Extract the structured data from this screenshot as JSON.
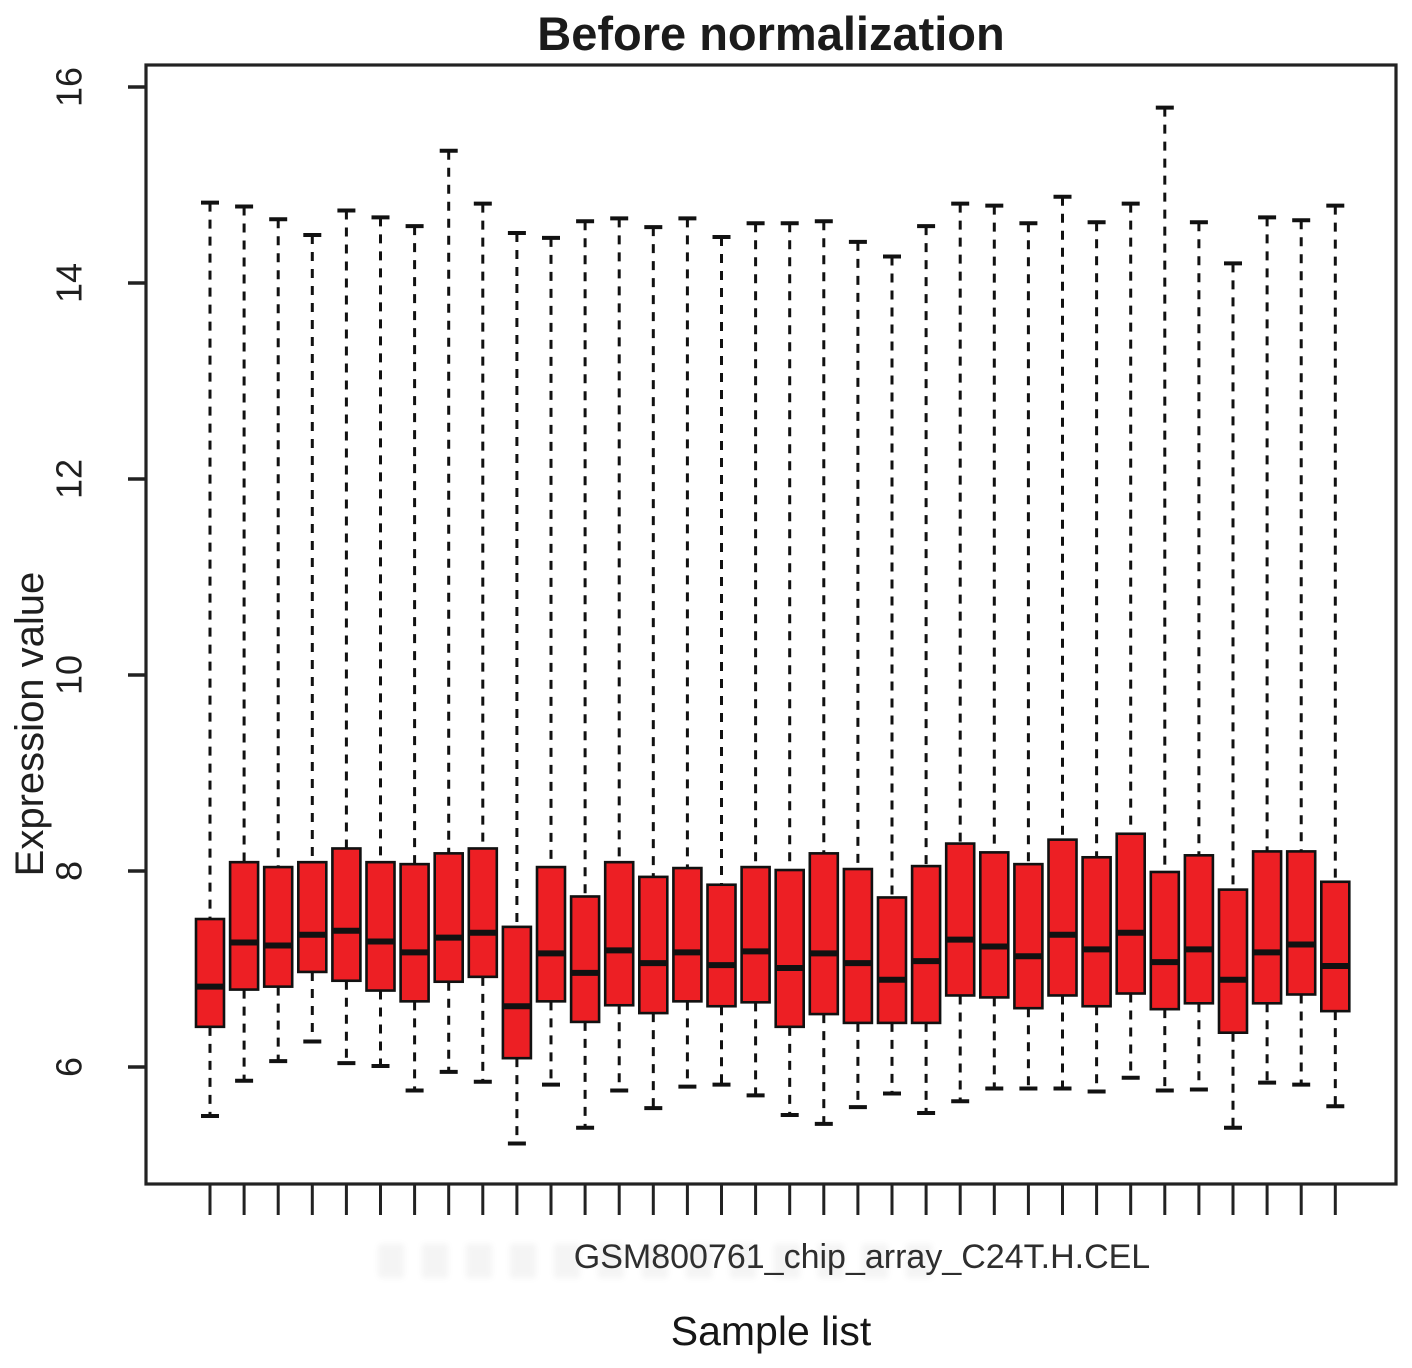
{
  "title": "Before normalization",
  "y_axis": {
    "label": "Expression value"
  },
  "x_axis": {
    "label": "Sample list",
    "tick_label": "GSM800761_chip_array_C24T.H.CEL"
  },
  "chart_data": {
    "type": "boxplot",
    "title": "Before normalization",
    "xlabel": "Sample list",
    "ylabel": "Expression value",
    "x_tick_label_visible": "GSM800761_chip_array_C24T.H.CEL",
    "ylim": [
      4.8,
      16.2
    ],
    "y_ticks": [
      6,
      8,
      10,
      12,
      14,
      16
    ],
    "grid": false,
    "legend": "none",
    "n_boxes": 34,
    "box_fill_color": "#ED1F24",
    "stroke_color": "#111111",
    "whisker_style": "dashed",
    "boxes": [
      {
        "low": 5.5,
        "q1": 6.41,
        "median": 6.82,
        "q3": 7.51,
        "high": 14.82
      },
      {
        "low": 5.86,
        "q1": 6.79,
        "median": 7.27,
        "q3": 8.09,
        "high": 14.78
      },
      {
        "low": 6.06,
        "q1": 6.82,
        "median": 7.24,
        "q3": 8.04,
        "high": 14.65
      },
      {
        "low": 6.26,
        "q1": 6.97,
        "median": 7.35,
        "q3": 8.09,
        "high": 14.49
      },
      {
        "low": 6.04,
        "q1": 6.88,
        "median": 7.39,
        "q3": 8.23,
        "high": 14.74
      },
      {
        "low": 6.01,
        "q1": 6.78,
        "median": 7.28,
        "q3": 8.09,
        "high": 14.67
      },
      {
        "low": 5.76,
        "q1": 6.67,
        "median": 7.17,
        "q3": 8.07,
        "high": 14.58
      },
      {
        "low": 5.95,
        "q1": 6.87,
        "median": 7.32,
        "q3": 8.18,
        "high": 15.35
      },
      {
        "low": 5.85,
        "q1": 6.92,
        "median": 7.37,
        "q3": 8.23,
        "high": 14.81
      },
      {
        "low": 5.22,
        "q1": 6.09,
        "median": 6.62,
        "q3": 7.43,
        "high": 14.51
      },
      {
        "low": 5.82,
        "q1": 6.67,
        "median": 7.16,
        "q3": 8.04,
        "high": 14.46
      },
      {
        "low": 5.38,
        "q1": 6.46,
        "median": 6.96,
        "q3": 7.74,
        "high": 14.63
      },
      {
        "low": 5.76,
        "q1": 6.63,
        "median": 7.19,
        "q3": 8.09,
        "high": 14.66
      },
      {
        "low": 5.58,
        "q1": 6.55,
        "median": 7.06,
        "q3": 7.94,
        "high": 14.57
      },
      {
        "low": 5.8,
        "q1": 6.67,
        "median": 7.17,
        "q3": 8.03,
        "high": 14.66
      },
      {
        "low": 5.82,
        "q1": 6.62,
        "median": 7.04,
        "q3": 7.86,
        "high": 14.47
      },
      {
        "low": 5.71,
        "q1": 6.66,
        "median": 7.18,
        "q3": 8.04,
        "high": 14.61
      },
      {
        "low": 5.51,
        "q1": 6.41,
        "median": 7.01,
        "q3": 8.01,
        "high": 14.61
      },
      {
        "low": 5.42,
        "q1": 6.54,
        "median": 7.16,
        "q3": 8.18,
        "high": 14.63
      },
      {
        "low": 5.59,
        "q1": 6.45,
        "median": 7.06,
        "q3": 8.02,
        "high": 14.42
      },
      {
        "low": 5.73,
        "q1": 6.45,
        "median": 6.89,
        "q3": 7.73,
        "high": 14.27
      },
      {
        "low": 5.53,
        "q1": 6.45,
        "median": 7.08,
        "q3": 8.05,
        "high": 14.58
      },
      {
        "low": 5.65,
        "q1": 6.73,
        "median": 7.3,
        "q3": 8.28,
        "high": 14.81
      },
      {
        "low": 5.78,
        "q1": 6.71,
        "median": 7.23,
        "q3": 8.19,
        "high": 14.79
      },
      {
        "low": 5.78,
        "q1": 6.6,
        "median": 7.13,
        "q3": 8.07,
        "high": 14.61
      },
      {
        "low": 5.78,
        "q1": 6.73,
        "median": 7.35,
        "q3": 8.32,
        "high": 14.88
      },
      {
        "low": 5.75,
        "q1": 6.62,
        "median": 7.2,
        "q3": 8.14,
        "high": 14.62
      },
      {
        "low": 5.89,
        "q1": 6.75,
        "median": 7.37,
        "q3": 8.38,
        "high": 14.81
      },
      {
        "low": 5.76,
        "q1": 6.59,
        "median": 7.07,
        "q3": 7.99,
        "high": 15.79
      },
      {
        "low": 5.77,
        "q1": 6.65,
        "median": 7.2,
        "q3": 8.16,
        "high": 14.62
      },
      {
        "low": 5.38,
        "q1": 6.35,
        "median": 6.89,
        "q3": 7.81,
        "high": 14.2
      },
      {
        "low": 5.84,
        "q1": 6.65,
        "median": 7.17,
        "q3": 8.2,
        "high": 14.67
      },
      {
        "low": 5.82,
        "q1": 6.74,
        "median": 7.25,
        "q3": 8.2,
        "high": 14.64
      },
      {
        "low": 5.6,
        "q1": 6.57,
        "median": 7.03,
        "q3": 7.89,
        "high": 14.79
      }
    ]
  }
}
